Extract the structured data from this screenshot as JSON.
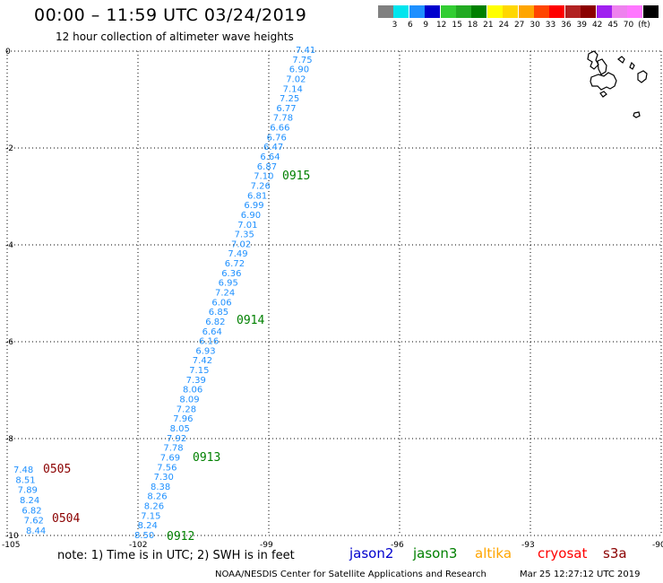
{
  "title": "00:00 – 11:59 UTC 03/24/2019",
  "subtitle": "12 hour collection of altimeter wave heights",
  "legend": {
    "colors": [
      "#808080",
      "#00e5ee",
      "#1e90ff",
      "#0000cd",
      "#32cd32",
      "#22aa22",
      "#008000",
      "#ffff00",
      "#ffd700",
      "#ffa500",
      "#ff4500",
      "#ff0000",
      "#b22222",
      "#8b0000",
      "#a020f0",
      "#ee82ee",
      "#ff77ff",
      "#000000"
    ],
    "labels": [
      "3",
      "6",
      "9",
      "12",
      "15",
      "18",
      "21",
      "24",
      "27",
      "30",
      "33",
      "36",
      "39",
      "42",
      "45",
      "70",
      "(ft)"
    ]
  },
  "axes": {
    "x_ticks": [
      "-105",
      "-102",
      "-99",
      "-96",
      "-93",
      "-90"
    ],
    "y_ticks": [
      "0",
      "-2",
      "-4",
      "-6",
      "-8",
      "-10"
    ]
  },
  "track_values": {
    "main": [
      "7.41",
      "7.75",
      "6.90",
      "7.02",
      "7.14",
      "7.25",
      "6.77",
      "7.78",
      "6.66",
      "6.76",
      "6.47",
      "6.64",
      "6.87",
      "7.10",
      "7.26",
      "6.81",
      "6.99",
      "6.90",
      "7.01",
      "7.35",
      "7.02",
      "7.49",
      "6.72",
      "6.36",
      "6.95",
      "7.24",
      "6.06",
      "6.85",
      "6.82",
      "6.64",
      "6.16",
      "6.93",
      "7.42",
      "7.15",
      "7.39",
      "8.06",
      "8.09",
      "7.28",
      "7.96",
      "8.05",
      "7.92",
      "7.78",
      "7.69",
      "7.56",
      "7.30",
      "8.38",
      "8.26",
      "8.26",
      "7.15",
      "8.24",
      "8.50"
    ],
    "west": [
      "7.48",
      "8.51",
      "7.89",
      "8.24",
      "6.82",
      "7.62",
      "8.44"
    ]
  },
  "time_labels": [
    {
      "text": "0915",
      "color": "#008000"
    },
    {
      "text": "0914",
      "color": "#008000"
    },
    {
      "text": "0913",
      "color": "#008000"
    },
    {
      "text": "0912",
      "color": "#008000"
    },
    {
      "text": "0505",
      "color": "#8b0000"
    },
    {
      "text": "0504",
      "color": "#8b0000"
    }
  ],
  "track_color": "#1e90ff",
  "note": "note:  1) Time is in UTC;  2) SWH is in feet",
  "satellites": [
    {
      "name": "jason2",
      "color": "#0000cd"
    },
    {
      "name": "jason3",
      "color": "#008000"
    },
    {
      "name": "altika",
      "color": "#ffa500"
    },
    {
      "name": "cryosat",
      "color": "#ff0000"
    },
    {
      "name": "s3a",
      "color": "#8b0000"
    }
  ],
  "footer_left": "NOAA/NESDIS Center for Satellite Applications and Research",
  "footer_right": "Mar 25 12:27:12 UTC 2019"
}
